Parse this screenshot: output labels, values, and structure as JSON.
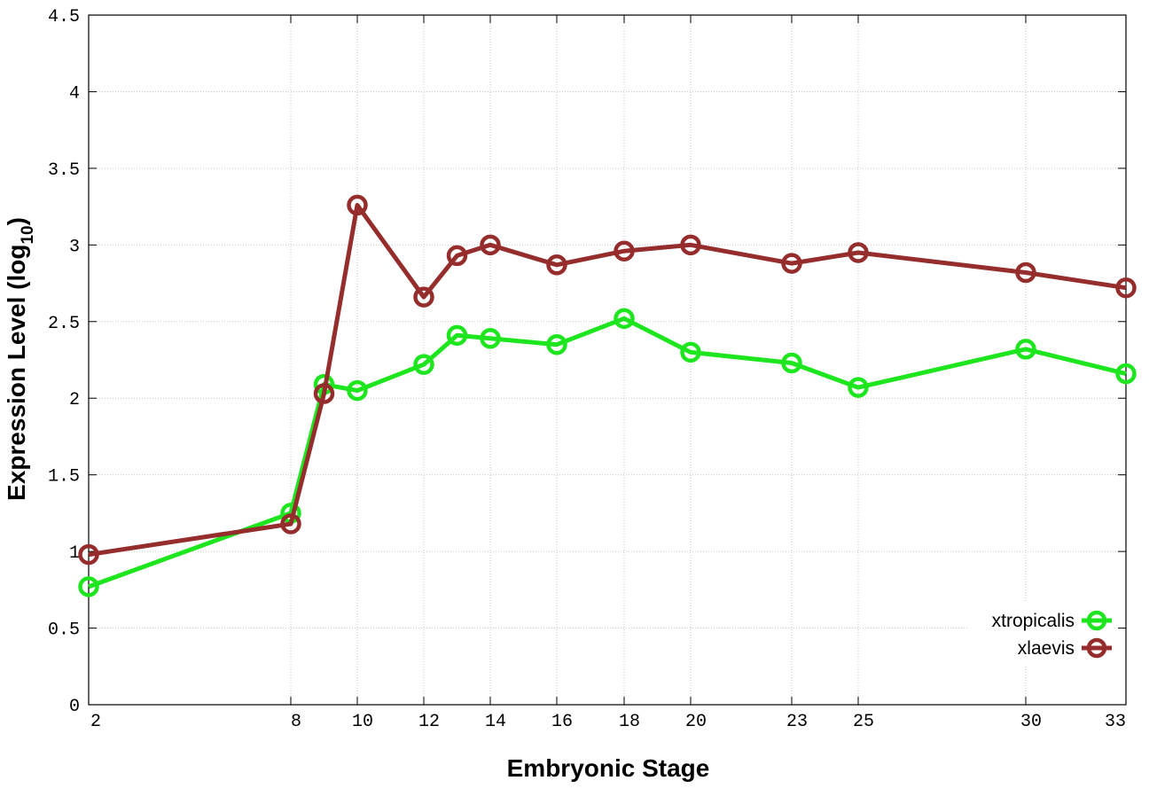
{
  "chart_data": {
    "type": "line",
    "xlabel": "Embryonic Stage",
    "ylabel": "Expression Level (log",
    "ylabel_sub": "10",
    "ylabel_end": ")",
    "x_ticks": [
      "2",
      "8",
      "10",
      "12",
      "14",
      "16",
      "18",
      "20",
      "23",
      "25",
      "30",
      "33"
    ],
    "y_ticks": [
      "0",
      "0.5",
      "1",
      "1.5",
      "2",
      "2.5",
      "3",
      "3.5",
      "4",
      "4.5"
    ],
    "ylim": [
      0,
      4.5
    ],
    "grid": true,
    "legend_position": "bottom-right",
    "x": [
      2,
      8,
      9,
      10,
      12,
      13,
      14,
      16,
      18,
      20,
      23,
      25,
      30,
      33
    ],
    "series": [
      {
        "name": "xtropicalis",
        "color": "#1ee61e",
        "values": [
          0.77,
          1.25,
          2.09,
          2.05,
          2.22,
          2.41,
          2.39,
          2.35,
          2.52,
          2.3,
          2.23,
          2.07,
          2.32,
          2.16
        ]
      },
      {
        "name": "xlaevis",
        "color": "#962d2d",
        "values": [
          0.98,
          1.18,
          2.03,
          3.26,
          2.66,
          2.93,
          3.0,
          2.87,
          2.96,
          3.0,
          2.88,
          2.95,
          2.82,
          2.72
        ]
      }
    ]
  }
}
